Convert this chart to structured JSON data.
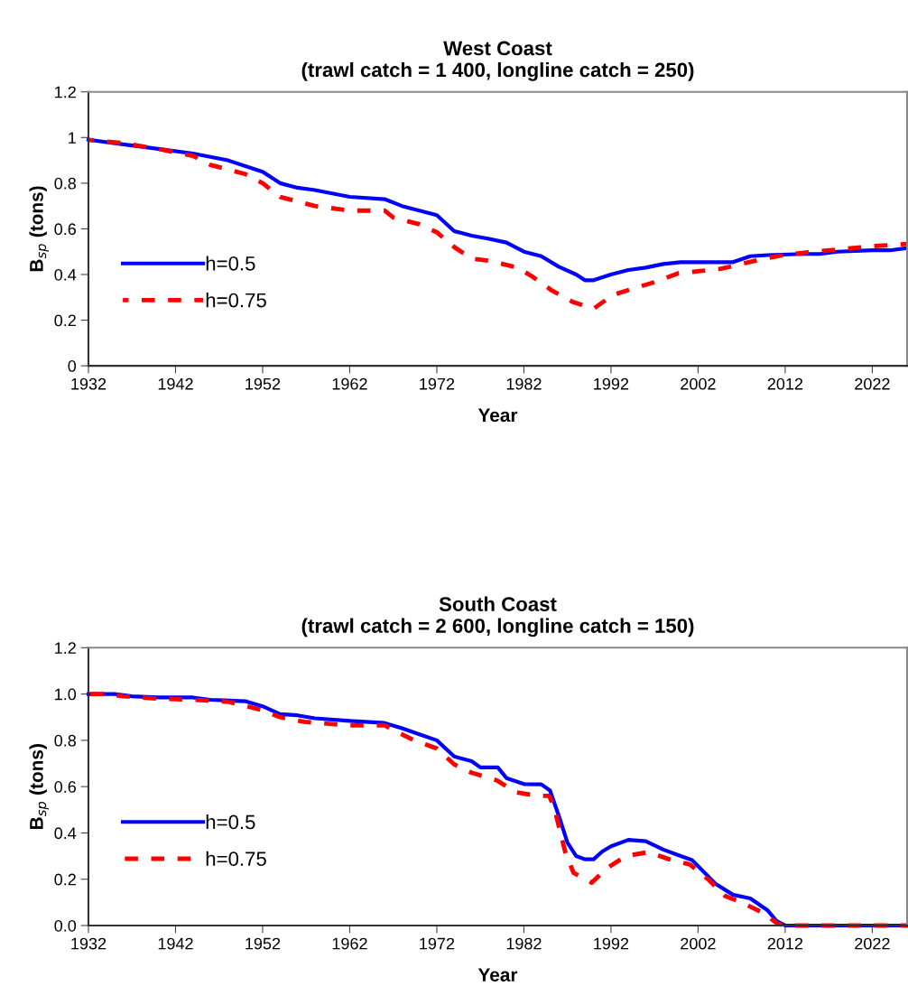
{
  "chart_data": [
    {
      "type": "line",
      "title": "West Coast\n(trawl catch = 1 400, longline catch = 250)",
      "xlabel": "Year",
      "ylabel": "B$_{sp}$ (tons)",
      "xlim": [
        1932,
        2026
      ],
      "xticks": [
        1932,
        1942,
        1952,
        1962,
        1972,
        1982,
        1992,
        2002,
        2012,
        2022
      ],
      "ylim": [
        0,
        1.2
      ],
      "yticks": [
        0,
        0.2,
        0.4,
        0.6,
        0.8,
        1,
        1.2
      ],
      "grid": false,
      "legend": "left",
      "series": [
        {
          "name": "h=0.5",
          "color": "#0000ff",
          "line_style": "solid",
          "x": [
            1932,
            1936,
            1940,
            1944,
            1948,
            1952,
            1954,
            1956,
            1958,
            1962,
            1966,
            1968,
            1972,
            1974,
            1976,
            1978,
            1980,
            1982,
            1984,
            1986,
            1988,
            1989,
            1990,
            1992,
            1994,
            1996,
            1998,
            2000,
            2006,
            2008,
            2010,
            2014,
            2016,
            2018,
            2022,
            2024,
            2026
          ],
          "values": [
            0.99,
            0.97,
            0.95,
            0.93,
            0.9,
            0.85,
            0.8,
            0.78,
            0.77,
            0.74,
            0.73,
            0.7,
            0.66,
            0.59,
            0.57,
            0.556,
            0.54,
            0.5,
            0.48,
            0.434,
            0.4,
            0.375,
            0.375,
            0.4,
            0.42,
            0.43,
            0.446,
            0.454,
            0.454,
            0.48,
            0.485,
            0.49,
            0.49,
            0.5,
            0.506,
            0.506,
            0.516
          ]
        },
        {
          "name": "h=0.75",
          "color": "#ff0000",
          "line_style": "dashed",
          "x": [
            1932,
            1936,
            1940,
            1944,
            1946,
            1950,
            1952,
            1954,
            1958,
            1962,
            1966,
            1967,
            1970,
            1972,
            1974,
            1976,
            1978,
            1981.3,
            1983,
            1985.2,
            1987.6,
            1990,
            1992.2,
            1994.7,
            1997.3,
            1999.7,
            2002.2,
            2004.6,
            2007.1,
            2009.6,
            2012.1,
            2014.6,
            2017.1,
            2019.5,
            2022,
            2024.5,
            2026
          ],
          "values": [
            0.99,
            0.975,
            0.95,
            0.92,
            0.88,
            0.84,
            0.8,
            0.74,
            0.7,
            0.68,
            0.68,
            0.65,
            0.62,
            0.585,
            0.52,
            0.47,
            0.46,
            0.43,
            0.39,
            0.33,
            0.28,
            0.25,
            0.31,
            0.34,
            0.37,
            0.405,
            0.415,
            0.425,
            0.447,
            0.47,
            0.487,
            0.497,
            0.506,
            0.515,
            0.524,
            0.53,
            0.534
          ]
        }
      ]
    },
    {
      "type": "line",
      "title": "South Coast\n(trawl catch = 2 600, longline catch = 150)",
      "xlabel": "Year",
      "ylabel": "B$_{sp}$ (tons)",
      "xlim": [
        1932,
        2026
      ],
      "xticks": [
        1932,
        1942,
        1952,
        1962,
        1972,
        1982,
        1992,
        2002,
        2012,
        2022
      ],
      "ylim": [
        0,
        1.2
      ],
      "yticks": [
        {
          "value": 0,
          "label": "0.0"
        },
        {
          "value": 0.2,
          "label": "0.2"
        },
        {
          "value": 0.4,
          "label": "0.4"
        },
        {
          "value": 0.6,
          "label": "0.6"
        },
        {
          "value": 0.8,
          "label": "0.8"
        },
        {
          "value": 1,
          "label": "1.0"
        },
        {
          "value": 1.2,
          "label": "1.2"
        }
      ],
      "grid": false,
      "legend": "left",
      "series": [
        {
          "name": "h=0.5",
          "color": "#0000ff",
          "line_style": "solid",
          "x": [
            1932,
            1935,
            1937,
            1940,
            1944,
            1946,
            1950,
            1952,
            1954,
            1956,
            1958,
            1962,
            1966,
            1968,
            1970,
            1972,
            1974,
            1976,
            1977,
            1979,
            1980,
            1982,
            1984,
            1985,
            1986,
            1987,
            1988,
            1989,
            1990,
            1991,
            1992,
            1994,
            1996,
            1998,
            2000,
            2001.3,
            2004,
            2006,
            2008,
            2010,
            2011,
            2012,
            2026
          ],
          "values": [
            1.0,
            1.0,
            0.99,
            0.985,
            0.985,
            0.975,
            0.969,
            0.947,
            0.913,
            0.908,
            0.895,
            0.884,
            0.875,
            0.852,
            0.826,
            0.8,
            0.73,
            0.71,
            0.683,
            0.683,
            0.637,
            0.611,
            0.61,
            0.583,
            0.475,
            0.358,
            0.3,
            0.286,
            0.286,
            0.32,
            0.342,
            0.37,
            0.364,
            0.328,
            0.3,
            0.283,
            0.18,
            0.133,
            0.117,
            0.065,
            0.02,
            0,
            0
          ]
        },
        {
          "name": "h=0.75",
          "color": "#ff0000",
          "line_style": "dashed",
          "x": [
            1932,
            1934,
            1936,
            1940,
            1944,
            1948,
            1952,
            1954,
            1956.8,
            1960,
            1962,
            1966,
            1967.2,
            1969.4,
            1972,
            1974,
            1976,
            1978.9,
            1981.1,
            1983.6,
            1984.9,
            1985.5,
            1986.1,
            1986.8,
            1987.7,
            1989.8,
            1991.5,
            1993.7,
            1996.3,
            1998.7,
            2001.1,
            2003.2,
            2005.1,
            2007.3,
            2009.6,
            2011.1,
            2012,
            2026
          ],
          "values": [
            1.0,
            1.0,
            0.99,
            0.98,
            0.975,
            0.967,
            0.93,
            0.9,
            0.88,
            0.87,
            0.865,
            0.865,
            0.84,
            0.8,
            0.765,
            0.696,
            0.66,
            0.627,
            0.575,
            0.56,
            0.56,
            0.507,
            0.416,
            0.31,
            0.228,
            0.185,
            0.247,
            0.3,
            0.317,
            0.286,
            0.263,
            0.198,
            0.128,
            0.094,
            0.052,
            0.008,
            0,
            0
          ]
        }
      ]
    }
  ]
}
